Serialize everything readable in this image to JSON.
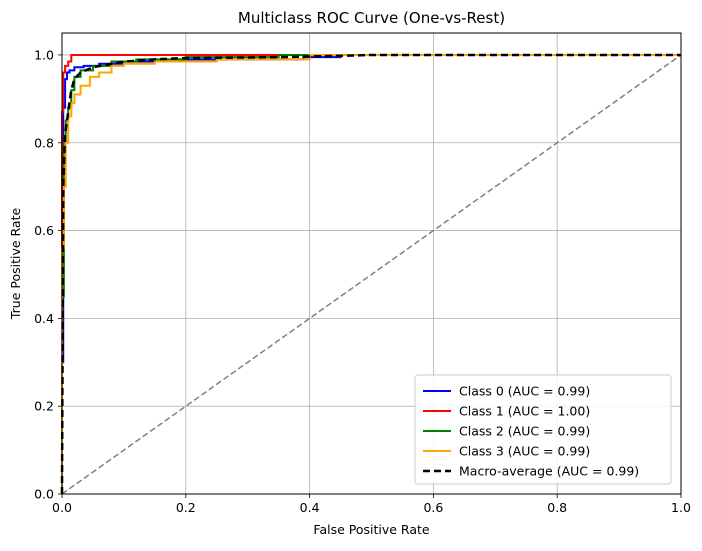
{
  "chart_data": {
    "type": "line",
    "title": "Multiclass ROC Curve (One-vs-Rest)",
    "xlabel": "False Positive Rate",
    "ylabel": "True Positive Rate",
    "xlim": [
      0,
      1
    ],
    "ylim": [
      0,
      1.05
    ],
    "xticks": [
      "0.0",
      "0.2",
      "0.4",
      "0.6",
      "0.8",
      "1.0"
    ],
    "yticks": [
      "0.0",
      "0.2",
      "0.4",
      "0.6",
      "0.8",
      "1.0"
    ],
    "grid": true,
    "legend_position": "lower-right",
    "series": [
      {
        "name": "Class 0 (AUC = 0.99)",
        "color": "#0000ff",
        "dash": "solid",
        "x": [
          0.0,
          0.0,
          0.002,
          0.002,
          0.005,
          0.005,
          0.008,
          0.008,
          0.012,
          0.012,
          0.02,
          0.02,
          0.035,
          0.035,
          0.06,
          0.06,
          0.1,
          0.1,
          0.19,
          0.19,
          0.39,
          0.39,
          0.45,
          0.45,
          1.0
        ],
        "y": [
          0.0,
          0.3,
          0.3,
          0.88,
          0.88,
          0.945,
          0.945,
          0.96,
          0.96,
          0.965,
          0.965,
          0.972,
          0.972,
          0.975,
          0.975,
          0.98,
          0.98,
          0.985,
          0.985,
          0.99,
          0.99,
          0.995,
          0.995,
          1.0,
          1.0
        ]
      },
      {
        "name": "Class 1 (AUC = 1.00)",
        "color": "#ff0000",
        "dash": "solid",
        "x": [
          0.0,
          0.0,
          0.002,
          0.002,
          0.005,
          0.005,
          0.01,
          0.01,
          0.015,
          0.015,
          1.0
        ],
        "y": [
          0.0,
          0.87,
          0.87,
          0.96,
          0.96,
          0.975,
          0.975,
          0.985,
          0.985,
          1.0,
          1.0
        ]
      },
      {
        "name": "Class 2 (AUC = 0.99)",
        "color": "#008000",
        "dash": "solid",
        "x": [
          0.0,
          0.0,
          0.003,
          0.003,
          0.006,
          0.006,
          0.01,
          0.01,
          0.015,
          0.015,
          0.02,
          0.02,
          0.03,
          0.03,
          0.05,
          0.05,
          0.08,
          0.08,
          0.12,
          0.12,
          0.2,
          0.2,
          0.35,
          0.35,
          1.0
        ],
        "y": [
          0.0,
          0.45,
          0.45,
          0.8,
          0.8,
          0.85,
          0.85,
          0.88,
          0.88,
          0.92,
          0.92,
          0.95,
          0.95,
          0.965,
          0.965,
          0.975,
          0.975,
          0.985,
          0.985,
          0.99,
          0.99,
          0.995,
          0.995,
          1.0,
          1.0
        ]
      },
      {
        "name": "Class 3 (AUC = 0.99)",
        "color": "#ffa500",
        "dash": "solid",
        "x": [
          0.0,
          0.0,
          0.003,
          0.003,
          0.006,
          0.006,
          0.01,
          0.01,
          0.015,
          0.015,
          0.02,
          0.02,
          0.03,
          0.03,
          0.045,
          0.045,
          0.06,
          0.06,
          0.08,
          0.08,
          0.1,
          0.1,
          0.15,
          0.15,
          0.25,
          0.25,
          0.4,
          0.4,
          1.0
        ],
        "y": [
          0.0,
          0.56,
          0.56,
          0.7,
          0.7,
          0.8,
          0.8,
          0.86,
          0.86,
          0.89,
          0.89,
          0.91,
          0.91,
          0.93,
          0.93,
          0.95,
          0.95,
          0.96,
          0.96,
          0.975,
          0.975,
          0.98,
          0.98,
          0.985,
          0.985,
          0.99,
          0.99,
          1.0,
          1.0
        ]
      },
      {
        "name": "Macro-average (AUC = 0.99)",
        "color": "#000000",
        "dash": "dashed",
        "x": [
          0.0,
          0.002,
          0.005,
          0.01,
          0.015,
          0.02,
          0.03,
          0.05,
          0.08,
          0.1,
          0.15,
          0.2,
          0.35,
          0.45,
          0.5,
          1.0
        ],
        "y": [
          0.0,
          0.7,
          0.82,
          0.87,
          0.92,
          0.945,
          0.96,
          0.972,
          0.98,
          0.985,
          0.99,
          0.993,
          0.995,
          0.998,
          1.0,
          1.0
        ]
      }
    ],
    "reference_line": {
      "color": "#808080",
      "dash": "dashed",
      "x": [
        0,
        1
      ],
      "y": [
        0,
        1
      ]
    }
  }
}
